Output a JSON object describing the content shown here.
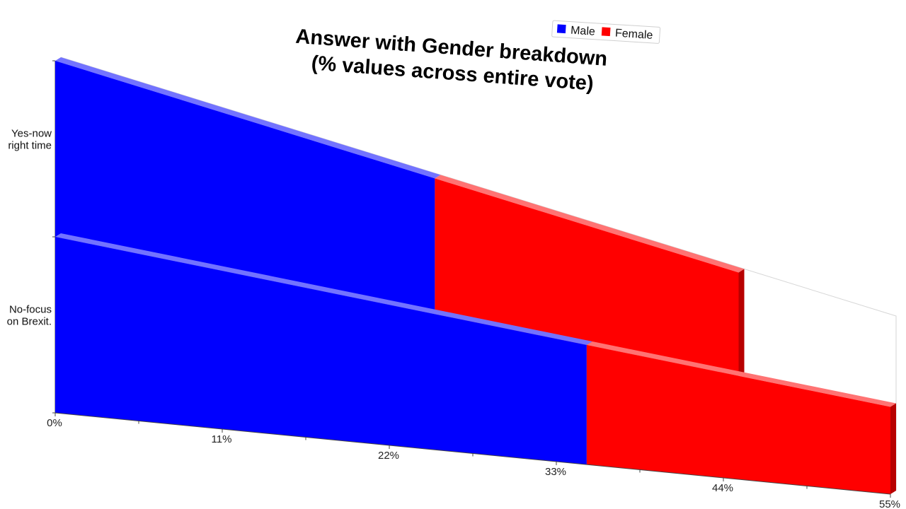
{
  "chart_data": {
    "type": "bar",
    "orientation": "horizontal",
    "stacked": true,
    "title": [
      "Answer with Gender breakdown",
      "(% values across entire vote)"
    ],
    "categories": [
      "Yes-now right time",
      "No-focus on Brexit."
    ],
    "category_label_lines": [
      [
        "Yes-now",
        "right time"
      ],
      [
        "No-focus",
        "on Brexit."
      ]
    ],
    "series": [
      {
        "name": "Male",
        "color": "#0000ff",
        "values": [
          25,
          35
        ]
      },
      {
        "name": "Female",
        "color": "#ff0000",
        "values": [
          20,
          20
        ]
      }
    ],
    "xaxis": {
      "ticks": [
        "0%",
        "11%",
        "22%",
        "33%",
        "44%",
        "55%"
      ],
      "range": [
        0,
        55
      ]
    },
    "legend": {
      "position": "top-right",
      "entries": [
        "Male",
        "Female"
      ]
    },
    "grid": false
  }
}
